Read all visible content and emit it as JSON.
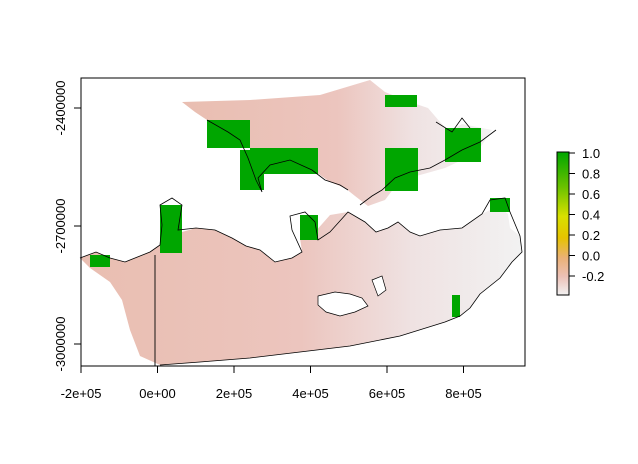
{
  "x_axis": {
    "ticks": [
      {
        "value": -200000,
        "label": "-2e+05"
      },
      {
        "value": 0,
        "label": "0e+00"
      },
      {
        "value": 200000,
        "label": "2e+05"
      },
      {
        "value": 400000,
        "label": "4e+05"
      },
      {
        "value": 600000,
        "label": "6e+05"
      },
      {
        "value": 800000,
        "label": "8e+05"
      }
    ]
  },
  "y_axis": {
    "ticks": [
      {
        "value": -2400000,
        "label": "-2400000"
      },
      {
        "value": -2700000,
        "label": "-2700000"
      },
      {
        "value": -3000000,
        "label": "-3000000"
      }
    ]
  },
  "legend": {
    "ticks": [
      {
        "value": 1.0,
        "label": "1.0"
      },
      {
        "value": 0.8,
        "label": "0.8"
      },
      {
        "value": 0.6,
        "label": "0.6"
      },
      {
        "value": 0.4,
        "label": "0.4"
      },
      {
        "value": 0.2,
        "label": "0.2"
      },
      {
        "value": 0.0,
        "label": "0.0"
      },
      {
        "value": -0.2,
        "label": "-0.2"
      }
    ],
    "range": [
      -0.35,
      1.0
    ],
    "colors": [
      "#f2f2f2",
      "#ecb176",
      "#e6e600",
      "#00a600"
    ]
  },
  "chart_data": {
    "type": "heatmap",
    "title": "",
    "xlabel": "",
    "ylabel": "",
    "xlim": [
      -200000,
      950000
    ],
    "ylim": [
      -3070000,
      -2305000
    ],
    "value_range": [
      -0.35,
      1.0
    ]
  }
}
